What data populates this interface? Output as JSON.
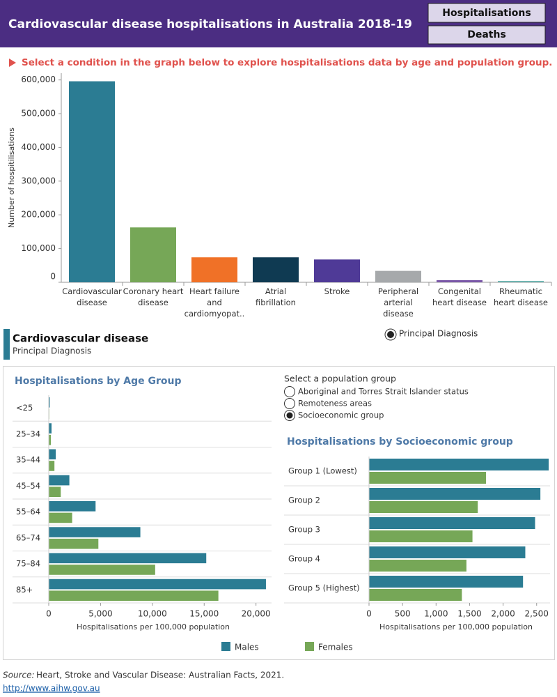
{
  "header": {
    "title": "Cardiovascular disease hospitalisations in Australia 2018-19",
    "buttons": [
      "Hospitalisations",
      "Deaths"
    ]
  },
  "instruction": "Select a condition in the graph below to explore hospitalisations data by age and population group.",
  "diagnosis_option": "Principal Diagnosis",
  "selection": {
    "condition": "Cardiovascular disease",
    "measure": "Principal Diagnosis"
  },
  "population_group": {
    "label": "Select a population group",
    "options": [
      "Aboriginal and Torres Strait Islander status",
      "Remoteness areas",
      "Socioeconomic group"
    ],
    "selected": 2
  },
  "source": {
    "prefix": "Source:",
    "text": "Heart, Stroke and Vascular Disease: Australian Facts, 2021.",
    "link": "http://www.aihw.gov.au"
  },
  "chart_data": [
    {
      "type": "bar",
      "y_label": "Number of hospitilisations",
      "categories": [
        "Cardiovascular disease",
        "Coronary heart disease",
        "Heart failure and cardiomyopat..",
        "Atrial fibrillation",
        "Stroke",
        "Peripheral arterial disease",
        "Congenital heart disease",
        "Rheumatic heart disease"
      ],
      "values": [
        596000,
        162700,
        74000,
        74000,
        67600,
        33800,
        6300,
        4200
      ],
      "colors": [
        "#2b7c93",
        "#76a757",
        "#f07127",
        "#0f3a52",
        "#4f3a97",
        "#a6a9ab",
        "#7b58a8",
        "#6fb4b1"
      ],
      "ylim": [
        0,
        620000
      ],
      "yticks": [
        0,
        {
          "value": 100000,
          "label": "100,000"
        },
        {
          "value": 200000,
          "label": "200,000"
        },
        {
          "value": 300000,
          "label": "300,000"
        },
        {
          "value": 400000,
          "label": "400,000"
        },
        {
          "value": 500000,
          "label": "500,000"
        },
        {
          "value": 600000,
          "label": "600,000"
        }
      ]
    },
    {
      "type": "hbar",
      "title": "Hospitalisations by Age Group",
      "x_label": "Hospitalisations per 100,000 population",
      "categories": [
        "<25",
        "25–34",
        "35–44",
        "45–54",
        "55–64",
        "65–74",
        "75–84",
        "85+"
      ],
      "series": [
        {
          "name": "Males",
          "color": "#2b7c93",
          "values": [
            100,
            270,
            680,
            1990,
            4520,
            8840,
            15200,
            20960
          ]
        },
        {
          "name": "Females",
          "color": "#76a757",
          "values": [
            50,
            200,
            550,
            1160,
            2260,
            4790,
            10270,
            16370
          ]
        }
      ],
      "xlim": [
        0,
        21500
      ],
      "xticks": [
        0,
        {
          "value": 5000,
          "label": "5,000"
        },
        {
          "value": 10000,
          "label": "10,000"
        },
        {
          "value": 15000,
          "label": "15,000"
        },
        {
          "value": 20000,
          "label": "20,000"
        }
      ]
    },
    {
      "type": "hbar",
      "title": "Hospitalisations by Socioeconomic group",
      "x_label": "Hospitalisations per 100,000 population",
      "categories": [
        "Group 1 (Lowest)",
        "Group 2",
        "Group 3",
        "Group 4",
        "Group 5 (Highest)"
      ],
      "series": [
        {
          "color": "#2b7c93",
          "values": [
            2680,
            2556,
            2477,
            2331,
            2297
          ]
        },
        {
          "color": "#76a757",
          "values": [
            1745,
            1622,
            1543,
            1453,
            1385
          ]
        }
      ],
      "xlim": [
        0,
        2700
      ],
      "xticks": [
        0,
        500,
        {
          "value": 1000,
          "label": "1,000"
        },
        {
          "value": 1500,
          "label": "1,500"
        },
        {
          "value": 2000,
          "label": "2,000"
        },
        {
          "value": 2500,
          "label": "2,500"
        }
      ]
    }
  ]
}
